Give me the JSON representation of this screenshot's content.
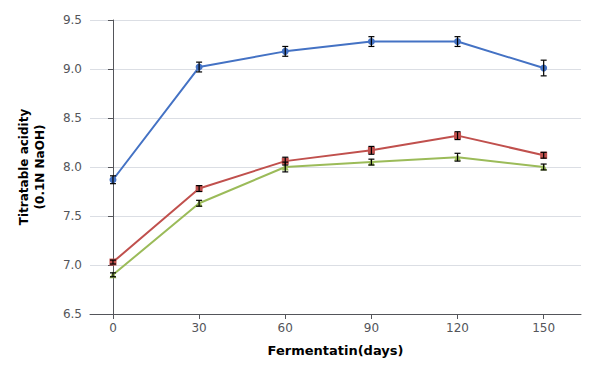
{
  "chart_data": {
    "type": "line",
    "xlabel": "Fermentatin(days)",
    "ylabel": "Titratable acidity\n(0.1N NaOH)",
    "x": [
      0,
      30,
      60,
      90,
      120,
      150
    ],
    "series": [
      {
        "color": "#4472C4",
        "marker": "circle",
        "values": [
          7.87,
          9.02,
          9.18,
          9.28,
          9.28,
          9.01
        ],
        "errors": [
          0.04,
          0.05,
          0.05,
          0.05,
          0.05,
          0.08
        ]
      },
      {
        "color": "#C0504D",
        "marker": "square",
        "values": [
          7.03,
          7.78,
          8.06,
          8.17,
          8.32,
          8.12
        ],
        "errors": [
          0.02,
          0.03,
          0.04,
          0.04,
          0.04,
          0.03
        ]
      },
      {
        "color": "#9BBB59",
        "marker": "triangle",
        "values": [
          6.9,
          7.63,
          8.0,
          8.05,
          8.1,
          8.0
        ],
        "errors": [
          0.02,
          0.03,
          0.05,
          0.03,
          0.04,
          0.03
        ]
      }
    ],
    "xlim": [
      -8,
      163
    ],
    "ylim": [
      6.5,
      9.5
    ],
    "xticks": [
      0,
      30,
      60,
      90,
      120,
      150
    ],
    "yticks": [
      6.5,
      {
        "value": 7,
        "label": "7.0"
      },
      7.5,
      {
        "value": 8,
        "label": "8.0"
      },
      8.5,
      {
        "value": 9,
        "label": "9.0"
      },
      9.5
    ],
    "grid": "y"
  }
}
